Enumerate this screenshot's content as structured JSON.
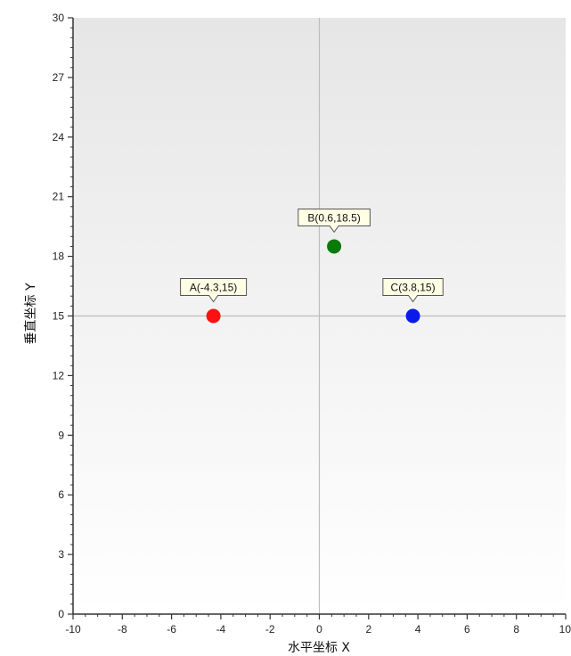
{
  "chart_data": {
    "type": "scatter",
    "xlabel": "水平坐标  X",
    "ylabel": "垂直坐标  Y",
    "xlim": [
      -10,
      10
    ],
    "ylim": [
      0,
      30
    ],
    "x_ticks": [
      -10,
      -8,
      -6,
      -4,
      -2,
      0,
      2,
      4,
      6,
      8,
      10
    ],
    "y_ticks": [
      0,
      3,
      6,
      9,
      12,
      15,
      18,
      21,
      24,
      27,
      30
    ],
    "x_tick_labels": [
      "-10",
      "-8",
      "-6",
      "-4",
      "-2",
      "0",
      "2",
      "4",
      "6",
      "8",
      "10"
    ],
    "y_tick_labels": [
      "0",
      "3",
      "6",
      "9",
      "12",
      "15",
      "18",
      "21",
      "24",
      "27",
      "30"
    ],
    "crosshair": {
      "x": 0,
      "y": 15
    },
    "points": [
      {
        "label": "A(-4.3,15)",
        "x": -4.3,
        "y": 15,
        "color": "#ff1010"
      },
      {
        "label": "B(0.6,18.5)",
        "x": 0.6,
        "y": 18.5,
        "color": "#0a7a0a"
      },
      {
        "label": "C(3.8,15)",
        "x": 3.8,
        "y": 15,
        "color": "#0a1ae8"
      }
    ],
    "grid": false,
    "colors": {
      "background_top": "#e6e6e6",
      "background_bottom": "#ffffff",
      "axis": "#333333",
      "crosshair": "#bdbdbd",
      "tooltip_fill": "#ffffe6"
    }
  }
}
